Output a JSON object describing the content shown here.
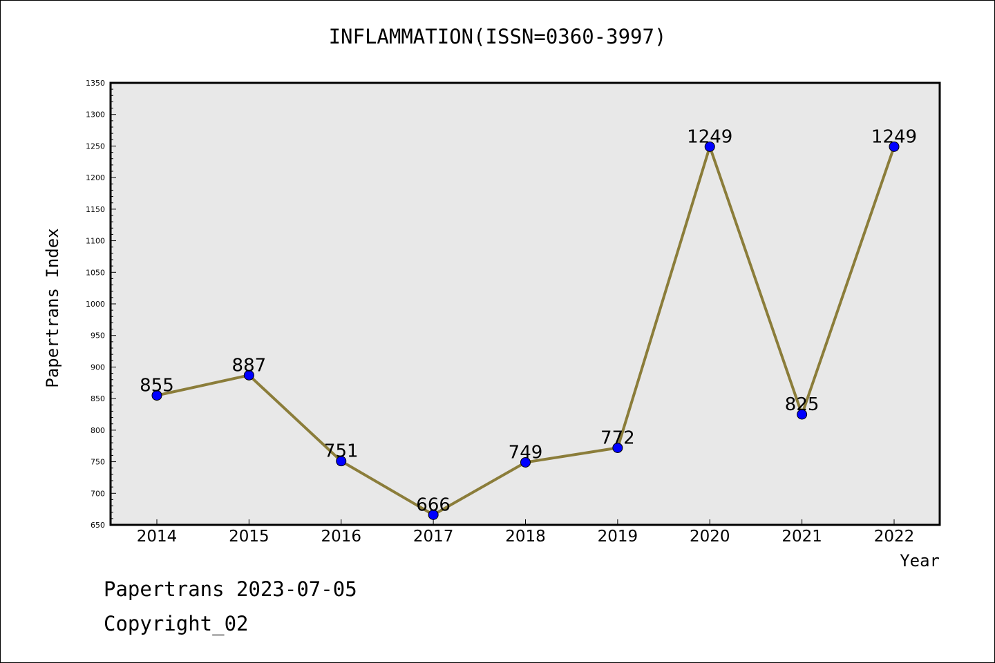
{
  "chart_data": {
    "type": "line",
    "title": "INFLAMMATION(ISSN=0360-3997)",
    "xlabel": "Year",
    "ylabel": "Papertrans Index",
    "categories": [
      "2014",
      "2015",
      "2016",
      "2017",
      "2018",
      "2019",
      "2020",
      "2021",
      "2022"
    ],
    "values": [
      855,
      887,
      751,
      666,
      749,
      772,
      1249,
      825,
      1249
    ],
    "data_labels": [
      "855",
      "887",
      "751",
      "666",
      "749",
      "772",
      "1249",
      "825",
      "1249"
    ],
    "ylim": [
      650,
      1350
    ],
    "yticks": [
      650,
      700,
      750,
      800,
      850,
      900,
      950,
      1000,
      1050,
      1100,
      1150,
      1200,
      1250,
      1300,
      1350
    ],
    "grid": false,
    "line_color": "#8b7d3a",
    "marker_color": "#0000ff",
    "plot_background": "#e8e8e8"
  },
  "footer": {
    "date_line": "Papertrans 2023-07-05",
    "copyright": "Copyright_02"
  }
}
